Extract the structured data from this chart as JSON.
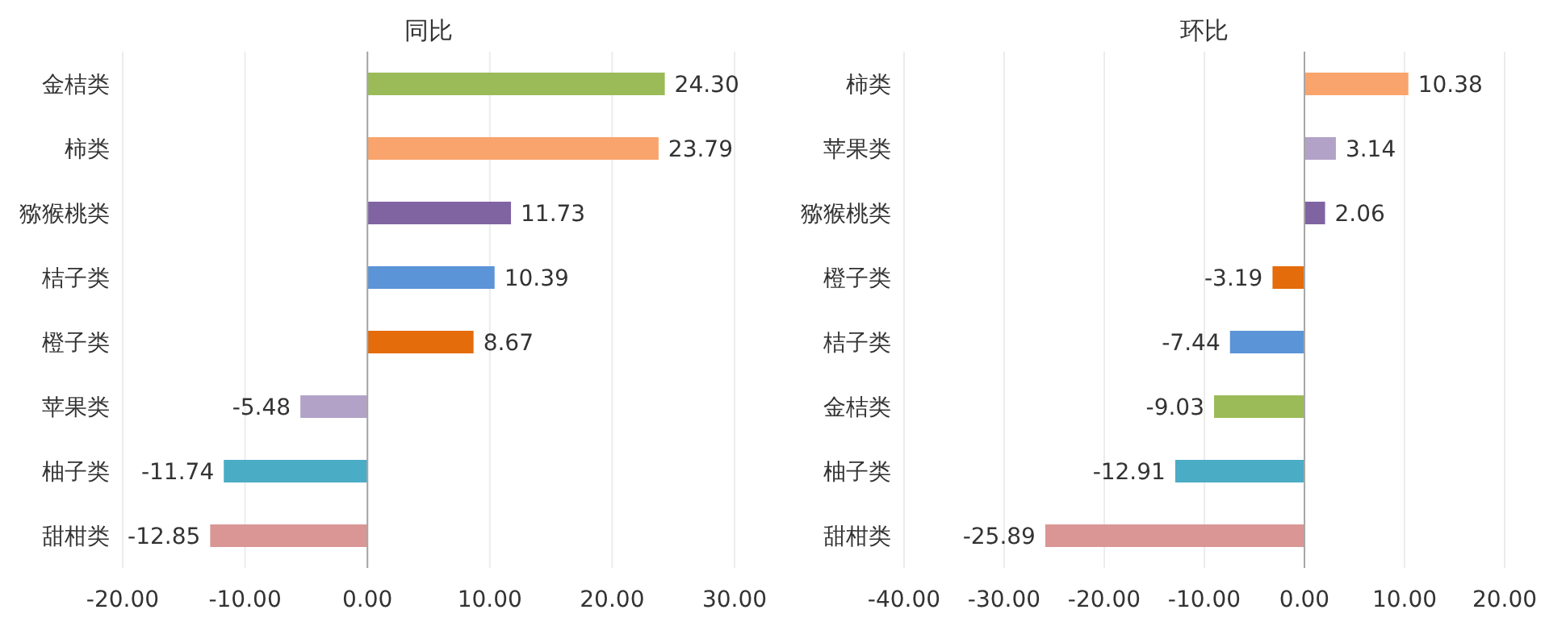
{
  "chart_data": [
    {
      "type": "bar",
      "orientation": "horizontal",
      "title": "同比",
      "categories": [
        "金桔类",
        "柿类",
        "猕猴桃类",
        "桔子类",
        "橙子类",
        "苹果类",
        "柚子类",
        "甜柑类"
      ],
      "values": [
        24.3,
        23.79,
        11.73,
        10.39,
        8.67,
        -5.48,
        -11.74,
        -12.85
      ],
      "value_labels": [
        "24.30",
        "23.79",
        "11.73",
        "10.39",
        "8.67",
        "-5.48",
        "-11.74",
        "-12.85"
      ],
      "colors": [
        "#9bbb59",
        "#f9a46c",
        "#8064a2",
        "#5b94d7",
        "#e46c0a",
        "#b2a2c7",
        "#4bacc6",
        "#d99694"
      ],
      "xlim": [
        -20,
        30
      ],
      "xticks": [
        {
          "value": -20,
          "label": "-20.00"
        },
        {
          "value": -10,
          "label": "-10.00"
        },
        {
          "value": 0,
          "label": "0.00"
        },
        {
          "value": 10,
          "label": "10.00"
        },
        {
          "value": 20,
          "label": "20.00"
        },
        {
          "value": 30,
          "label": "30.00"
        }
      ],
      "grid": "x"
    },
    {
      "type": "bar",
      "orientation": "horizontal",
      "title": "环比",
      "categories": [
        "柿类",
        "苹果类",
        "猕猴桃类",
        "橙子类",
        "桔子类",
        "金桔类",
        "柚子类",
        "甜柑类"
      ],
      "values": [
        10.38,
        3.14,
        2.06,
        -3.19,
        -7.44,
        -9.03,
        -12.91,
        -25.89
      ],
      "value_labels": [
        "10.38",
        "3.14",
        "2.06",
        "-3.19",
        "-7.44",
        "-9.03",
        "-12.91",
        "-25.89"
      ],
      "colors": [
        "#f9a46c",
        "#b2a2c7",
        "#8064a2",
        "#e46c0a",
        "#5b94d7",
        "#9bbb59",
        "#4bacc6",
        "#d99694"
      ],
      "xlim": [
        -40,
        20
      ],
      "xticks": [
        {
          "value": -40,
          "label": "-40.00"
        },
        {
          "value": -30,
          "label": "-30.00"
        },
        {
          "value": -20,
          "label": "-20.00"
        },
        {
          "value": -10,
          "label": "-10.00"
        },
        {
          "value": 0,
          "label": "0.00"
        },
        {
          "value": 10,
          "label": "10.00"
        },
        {
          "value": 20,
          "label": "20.00"
        }
      ],
      "grid": "x"
    }
  ]
}
